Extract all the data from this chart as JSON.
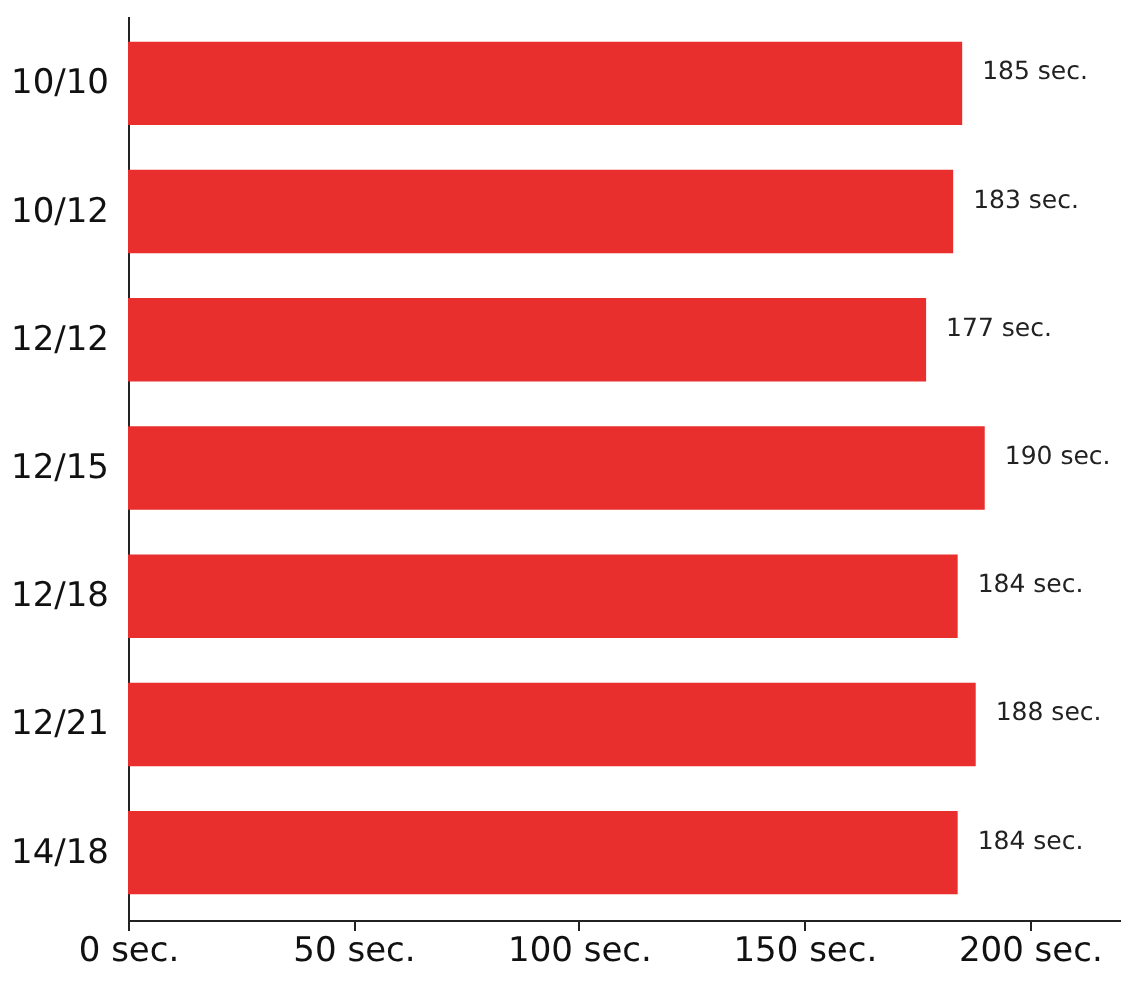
{
  "chart_data": {
    "type": "bar",
    "orientation": "horizontal",
    "categories": [
      "10/10",
      "10/12",
      "12/12",
      "12/15",
      "12/18",
      "12/21",
      "14/18"
    ],
    "values": [
      185,
      183,
      177,
      190,
      184,
      188,
      184
    ],
    "value_labels": [
      "185 sec.",
      "183 sec.",
      "177 sec.",
      "190 sec.",
      "184 sec.",
      "188 sec.",
      "184 sec."
    ],
    "color": "#e92e2e",
    "xlim": [
      0,
      220
    ],
    "xticks": [
      {
        "value": 0,
        "label": "0 sec."
      },
      {
        "value": 50,
        "label": "50 sec."
      },
      {
        "value": 100,
        "label": "100 sec."
      },
      {
        "value": 150,
        "label": "150 sec."
      },
      {
        "value": 200,
        "label": "200 sec."
      }
    ],
    "grid": false
  }
}
